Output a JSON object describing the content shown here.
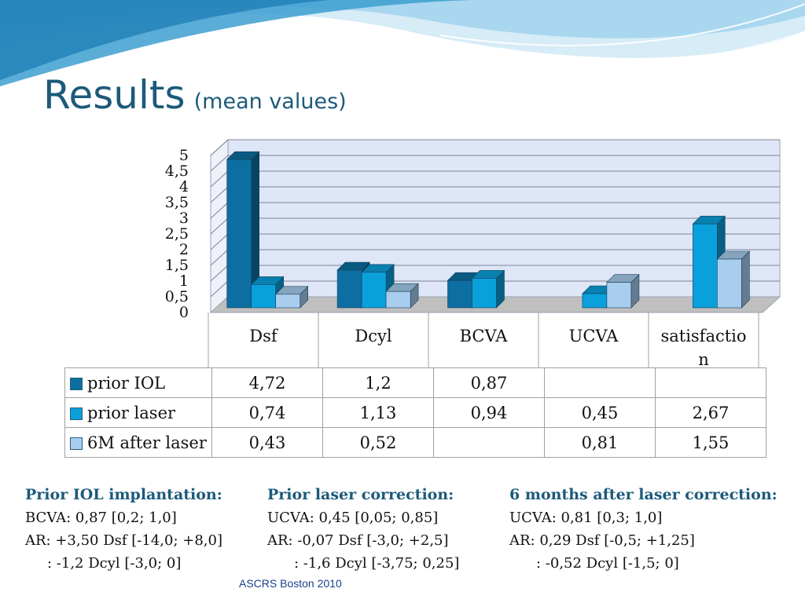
{
  "slide": {
    "title": "Results",
    "subtitle": "(mean values)",
    "footer": "ASCRS Boston 2010"
  },
  "chart_data": {
    "type": "bar",
    "categories": [
      "Dsf",
      "Dcyl",
      "BCVA",
      "UCVA",
      "satisfaction"
    ],
    "category_display": [
      "Dsf",
      "Dcyl",
      "BCVA",
      "UCVA",
      "satisfactio\nn"
    ],
    "series": [
      {
        "name": "prior IOL",
        "color": "#0d6fa1",
        "values": [
          4.72,
          1.2,
          0.87,
          null,
          null
        ]
      },
      {
        "name": "prior laser",
        "color": "#0aa0dc",
        "values": [
          0.74,
          1.13,
          0.94,
          0.45,
          2.67
        ]
      },
      {
        "name": "6M after laser",
        "color": "#a8cdee",
        "values": [
          0.43,
          0.52,
          null,
          0.81,
          1.55
        ]
      }
    ],
    "y_ticks": [
      "0",
      "0,5",
      "1",
      "1,5",
      "2",
      "2,5",
      "3",
      "3,5",
      "4",
      "4,5",
      "5"
    ],
    "ylim": [
      0,
      5
    ],
    "grid": true,
    "style": "3d"
  },
  "table": {
    "rows": [
      {
        "label": "prior IOL",
        "values": [
          "4,72",
          "1,2",
          "0,87",
          "",
          ""
        ]
      },
      {
        "label": "prior laser",
        "values": [
          "0,74",
          "1,13",
          "0,94",
          "0,45",
          "2,67"
        ]
      },
      {
        "label": "6M after laser",
        "values": [
          "0,43",
          "0,52",
          "",
          "0,81",
          "1,55"
        ]
      }
    ]
  },
  "notes": [
    {
      "heading": "Prior  IOL implantation:",
      "line1": "BCVA: 0,87 [0,2; 1,0]",
      "line2": "AR: +3,50 Dsf [-14,0; +8,0]",
      "line3": ": -1,2 Dcyl [-3,0; 0]"
    },
    {
      "heading": "Prior laser correction:",
      "line1": "UCVA: 0,45 [0,05; 0,85]",
      "line2": "AR: -0,07 Dsf [-3,0; +2,5]",
      "line3": ": -1,6 Dcyl [-3,75; 0,25]"
    },
    {
      "heading": "6 months after laser correction:",
      "line1": "UCVA: 0,81 [0,3; 1,0]",
      "line2": "AR: 0,29 Dsf [-0,5; +1,25]",
      "line3": ": -0,52 Dcyl [-1,5; 0]"
    }
  ]
}
